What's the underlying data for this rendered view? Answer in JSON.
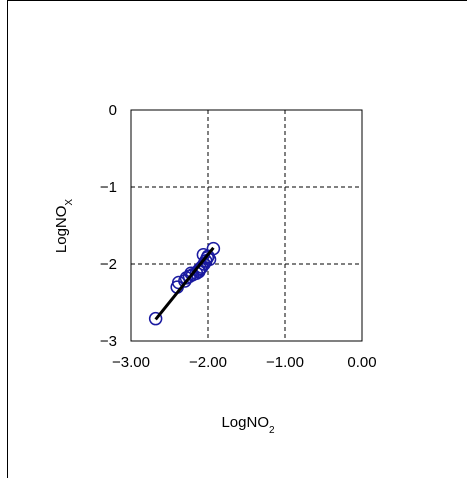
{
  "chart_data": {
    "type": "scatter",
    "xlabel": "LogNO",
    "xlabel_sub": "2",
    "ylabel": "LogNO",
    "ylabel_sub": "X",
    "xlim": [
      -3.0,
      0.0
    ],
    "ylim": [
      -3,
      0
    ],
    "x_ticks": [
      -3.0,
      -2.0,
      -1.0,
      0.0
    ],
    "x_tick_labels": [
      "−3.00",
      "−2.00",
      "−1.00",
      "0.00"
    ],
    "y_ticks": [
      0,
      -1,
      -2,
      -3
    ],
    "y_tick_labels": [
      "0",
      "−1",
      "−2",
      "−3"
    ],
    "grid": true,
    "grid_style": "dashed",
    "marker": "open-circle",
    "marker_color": "#1a1aa0",
    "points": [
      {
        "x": -2.68,
        "y": -2.71
      },
      {
        "x": -2.4,
        "y": -2.3
      },
      {
        "x": -2.38,
        "y": -2.24
      },
      {
        "x": -2.3,
        "y": -2.22
      },
      {
        "x": -2.28,
        "y": -2.18
      },
      {
        "x": -2.24,
        "y": -2.16
      },
      {
        "x": -2.2,
        "y": -2.14
      },
      {
        "x": -2.15,
        "y": -2.12
      },
      {
        "x": -2.12,
        "y": -2.08
      },
      {
        "x": -2.1,
        "y": -2.06
      },
      {
        "x": -2.08,
        "y": -2.04
      },
      {
        "x": -2.05,
        "y": -2.0
      },
      {
        "x": -2.03,
        "y": -1.96
      },
      {
        "x": -2.01,
        "y": -1.92
      },
      {
        "x": -2.06,
        "y": -1.88
      },
      {
        "x": -1.98,
        "y": -1.94
      },
      {
        "x": -1.93,
        "y": -1.8
      },
      {
        "x": -2.0,
        "y": -1.9
      },
      {
        "x": -2.12,
        "y": -2.1
      },
      {
        "x": -2.22,
        "y": -2.12
      }
    ],
    "trendline": {
      "x1": -2.68,
      "y1": -2.72,
      "x2": -1.93,
      "y2": -1.79,
      "color": "#000000"
    }
  }
}
